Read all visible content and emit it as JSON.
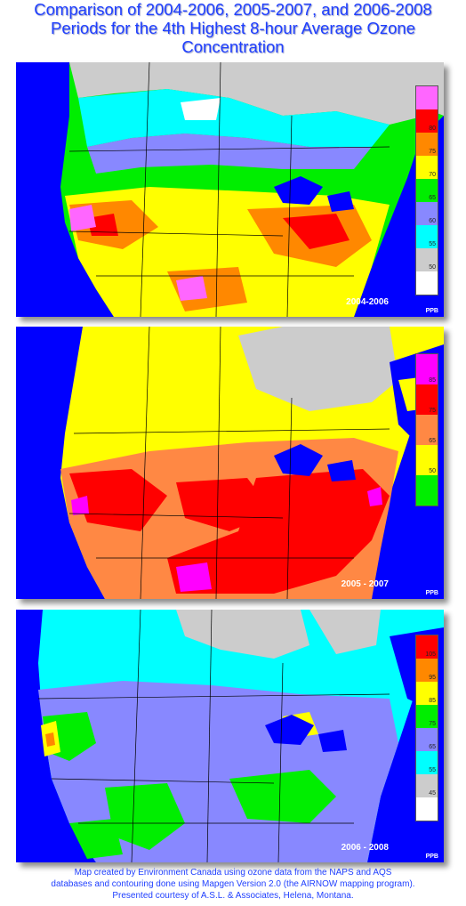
{
  "title": {
    "line1": "Comparison of 2004-2006, 2005-2007, and 2006-2008",
    "line2": "Periods for the 4th Highest 8-hour Average Ozone",
    "line3": "Concentration"
  },
  "maps": [
    {
      "period": "2004-2006",
      "unit": "PPB",
      "legend": [
        {
          "color": "#ff66ff",
          "label": ""
        },
        {
          "color": "#ff0000",
          "label": "80"
        },
        {
          "color": "#ff8800",
          "label": "75"
        },
        {
          "color": "#ffff00",
          "label": "70"
        },
        {
          "color": "#00ee00",
          "label": "65"
        },
        {
          "color": "#8888ff",
          "label": "60"
        },
        {
          "color": "#00ffff",
          "label": "55"
        },
        {
          "color": "#cccccc",
          "label": "50"
        },
        {
          "color": "#ffffff",
          "label": ""
        }
      ]
    },
    {
      "period": "2005 - 2007",
      "unit": "PPB",
      "legend": [
        {
          "color": "#ff00ff",
          "label": "85"
        },
        {
          "color": "#ff0000",
          "label": "75"
        },
        {
          "color": "#ff8844",
          "label": "65"
        },
        {
          "color": "#ffff00",
          "label": "50"
        },
        {
          "color": "#00ee00",
          "label": ""
        }
      ]
    },
    {
      "period": "2006 - 2008",
      "unit": "PPB",
      "legend": [
        {
          "color": "#ff0000",
          "label": "105"
        },
        {
          "color": "#ff8800",
          "label": "95"
        },
        {
          "color": "#ffff00",
          "label": "85"
        },
        {
          "color": "#00ee00",
          "label": "75"
        },
        {
          "color": "#8888ff",
          "label": "65"
        },
        {
          "color": "#00ffff",
          "label": "55"
        },
        {
          "color": "#cccccc",
          "label": "45"
        },
        {
          "color": "#ffffff",
          "label": ""
        }
      ]
    }
  ],
  "footer": {
    "line1": "Map created by Environment Canada using ozone data from the NAPS and AQS",
    "line2": "databases and contouring done using Mapgen Version 2.0  (the AIRNOW mapping program).",
    "line3": "Presented courtesy of A.S.L. & Associates, Helena, Montana."
  }
}
